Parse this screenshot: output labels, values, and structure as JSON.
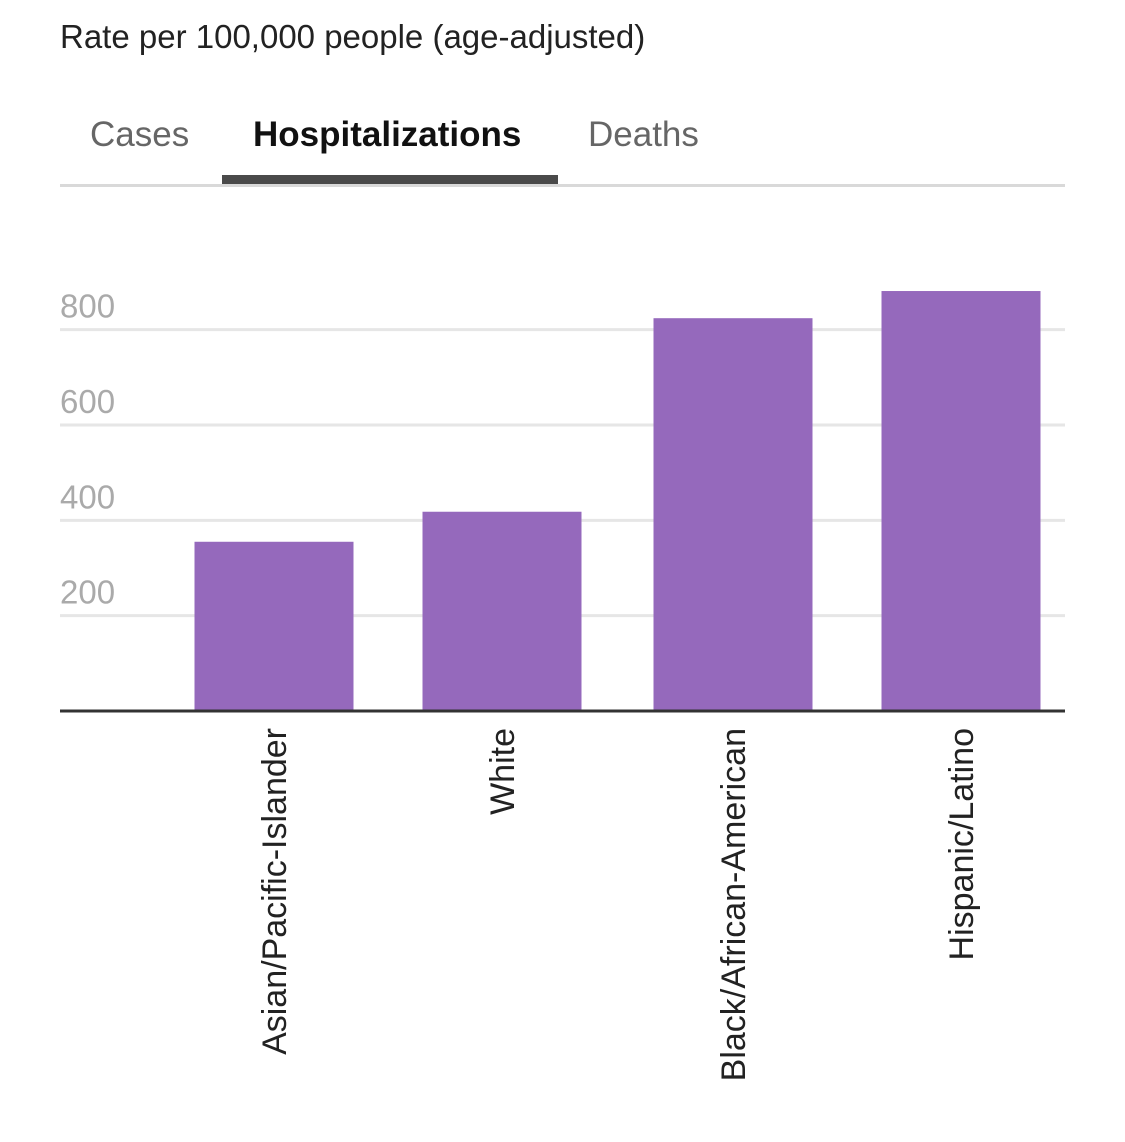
{
  "subtitle": "Rate per 100,000 people (age-adjusted)",
  "tabs": [
    {
      "label": "Cases",
      "active": false
    },
    {
      "label": "Hospitalizations",
      "active": true
    },
    {
      "label": "Deaths",
      "active": false
    }
  ],
  "colors": {
    "bar": "#9569bc",
    "gridline": "#e6e6e6",
    "axis": "#333333",
    "tick_label": "#aaaaaa",
    "active_tab_underline": "#4a4a4a"
  },
  "chart_data": {
    "type": "bar",
    "title": "",
    "xlabel": "",
    "ylabel": "",
    "categories": [
      "Asian/Pacific-Islander",
      "White",
      "Black/African-American",
      "Hispanic/Latino"
    ],
    "values": [
      355,
      418,
      824,
      881
    ],
    "ylim": [
      0,
      900
    ],
    "yticks": [
      200,
      400,
      600,
      800
    ],
    "grid": true,
    "legend": "none"
  }
}
